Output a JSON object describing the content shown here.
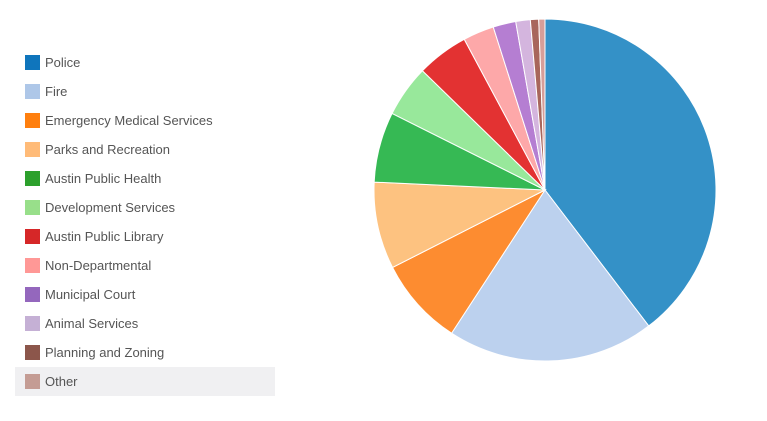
{
  "chart_data": {
    "type": "pie",
    "legend_position": "left",
    "categories": [
      "Police",
      "Fire",
      "Emergency Medical Services",
      "Parks and Recreation",
      "Austin Public Health",
      "Development Services",
      "Austin Public Library",
      "Non-Departmental",
      "Municipal Court",
      "Animal Services",
      "Planning and Zoning",
      "Other"
    ],
    "values": [
      40.5,
      20.0,
      8.5,
      8.4,
      6.8,
      5.0,
      5.0,
      3.0,
      2.2,
      1.4,
      0.8,
      0.6
    ],
    "unit": "percent (estimated share of pie)",
    "colors": [
      "#3491c7",
      "#bcd1ee",
      "#fd8c30",
      "#fdc280",
      "#36b954",
      "#98e89b",
      "#e33232",
      "#fda8a9",
      "#b57ed2",
      "#d4b5de",
      "#a8665c",
      "#d69e99"
    ],
    "legend_swatch_colors": [
      "#0f75bc",
      "#aec7e8",
      "#ff7f0e",
      "#ffbb78",
      "#2ca02c",
      "#98df8a",
      "#d62728",
      "#ff9896",
      "#9467bd",
      "#c5b0d5",
      "#8c564b",
      "#c49c94"
    ],
    "highlighted": "Other",
    "start_angle_deg": 0,
    "direction": "clockwise"
  }
}
